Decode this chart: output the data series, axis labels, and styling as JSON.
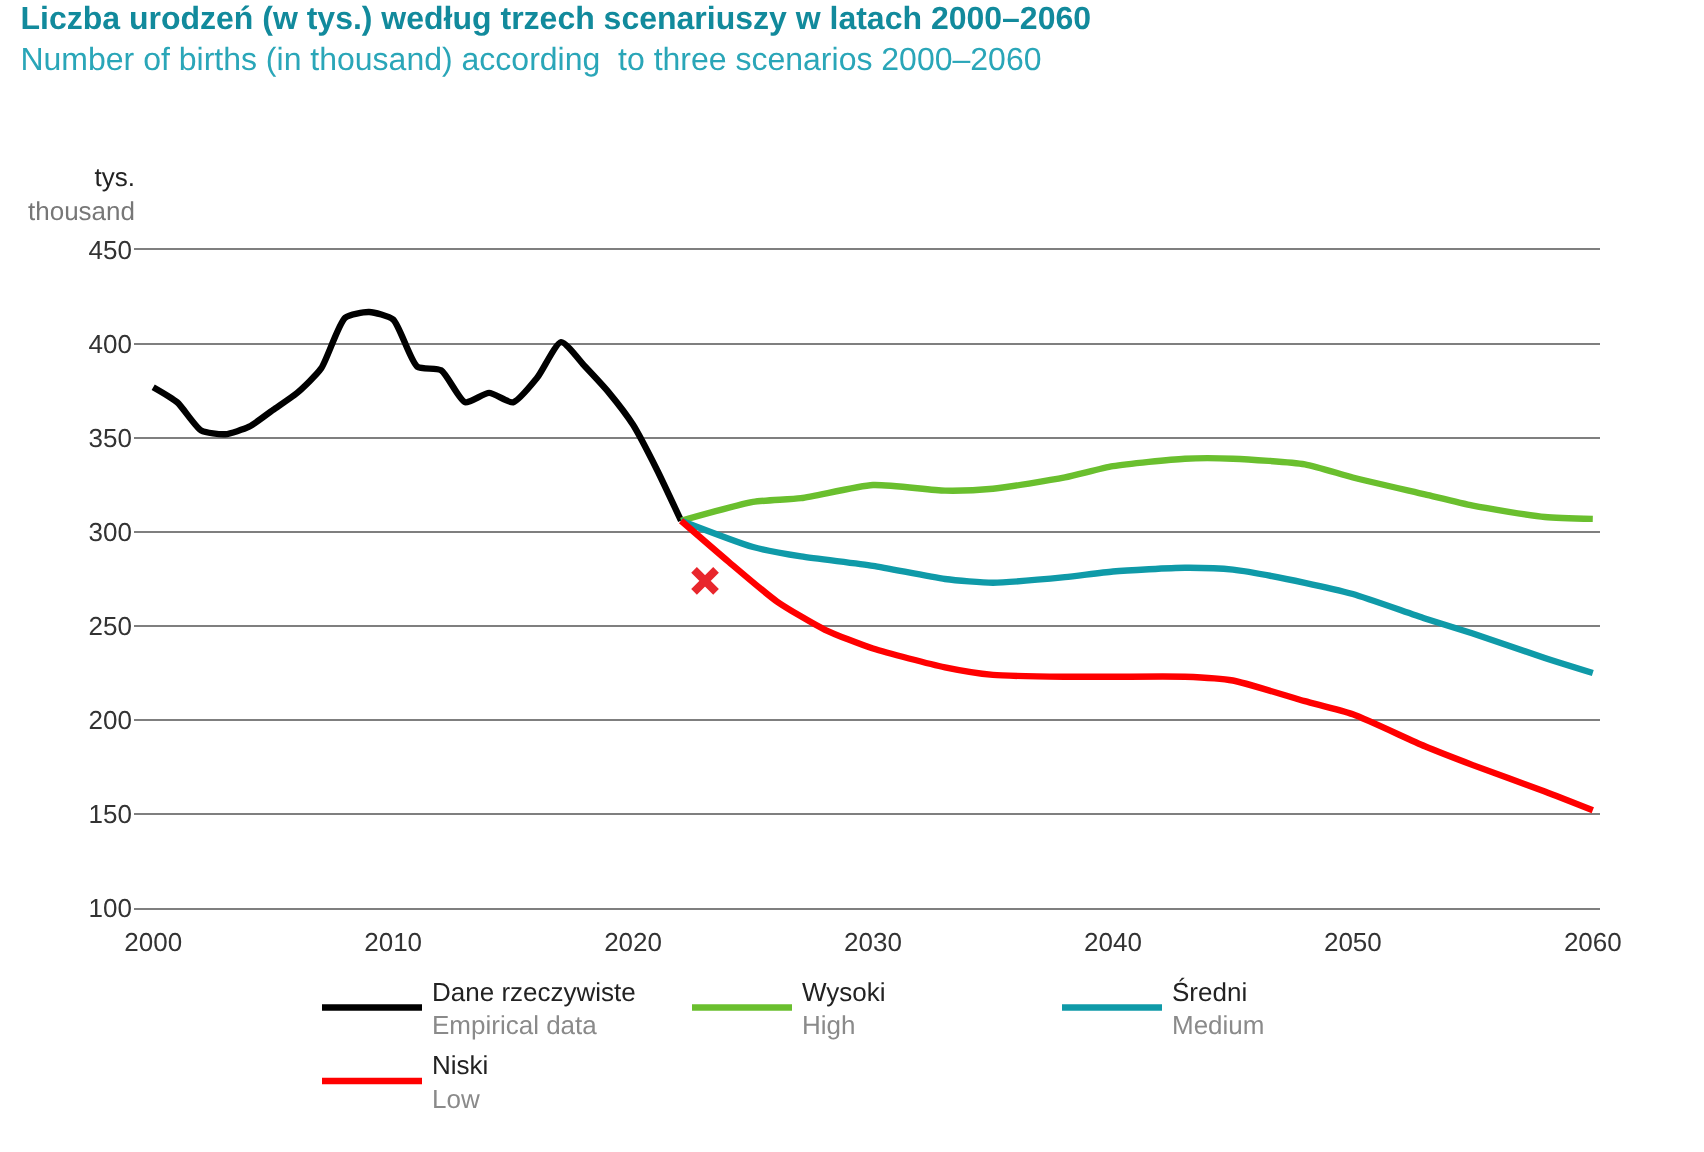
{
  "chart_data": {
    "type": "line",
    "title": "Liczba urodzeń (w tys.) według trzech scenariuszy w latach 2000–2060",
    "subtitle": "Number of births (in thousand) according  to three scenarios 2000–2060",
    "ylabel": "tys.\nthousand",
    "xlim": [
      1999.2,
      2060.3
    ],
    "xticks": [
      2000,
      2010,
      2020,
      2030,
      2040,
      2050,
      2060
    ],
    "ylim": [
      100,
      450
    ],
    "yticks": [
      100,
      150,
      200,
      250,
      300,
      350,
      400,
      450
    ],
    "grid": "y",
    "legend": "bottom",
    "marker": "none",
    "line_style": "solid",
    "series": [
      {
        "name": "Dane rzeczywiste\nEmpirical data",
        "color": "#000000",
        "x": [
          2000,
          2001,
          2002,
          2003,
          2004,
          2005,
          2006,
          2007,
          2008,
          2009,
          2010,
          2011,
          2012,
          2013,
          2014,
          2015,
          2016,
          2017,
          2018,
          2019,
          2020,
          2021,
          2022
        ],
        "values": [
          377,
          369,
          354,
          352,
          356,
          365,
          374,
          387,
          414,
          417,
          413,
          388,
          386,
          369,
          374,
          369,
          382,
          401,
          388,
          374,
          357,
          333,
          306
        ]
      },
      {
        "name": "Wysoki\nHigh",
        "color": "#6abf2e",
        "x": [
          2022,
          2025,
          2027,
          2030,
          2033,
          2035,
          2038,
          2040,
          2043,
          2045,
          2048,
          2050,
          2053,
          2055,
          2058,
          2060
        ],
        "values": [
          306,
          316,
          318,
          325,
          322,
          323,
          329,
          335,
          339,
          339,
          336,
          329,
          320,
          314,
          308,
          307
        ]
      },
      {
        "name": "Średni\nMedium",
        "color": "#0f9aa8",
        "x": [
          2022,
          2025,
          2027,
          2030,
          2033,
          2035,
          2038,
          2040,
          2043,
          2045,
          2048,
          2050,
          2053,
          2055,
          2058,
          2060
        ],
        "values": [
          306,
          292,
          287,
          282,
          275,
          273,
          276,
          279,
          281,
          280,
          273,
          267,
          254,
          246,
          233,
          225
        ]
      },
      {
        "name": "Niski\nLow",
        "color": "#ff0000",
        "x": [
          2022,
          2024,
          2026,
          2028,
          2030,
          2033,
          2035,
          2038,
          2040,
          2043,
          2045,
          2048,
          2050,
          2053,
          2055,
          2058,
          2060
        ],
        "values": [
          306,
          284,
          263,
          248,
          238,
          228,
          224,
          223,
          223,
          223,
          221,
          210,
          203,
          186,
          176,
          162,
          152
        ]
      },
      {
        "type": "scatter",
        "marker": "cross",
        "color": "#e8262c",
        "x": [
          2023
        ],
        "values": [
          274
        ]
      }
    ]
  }
}
